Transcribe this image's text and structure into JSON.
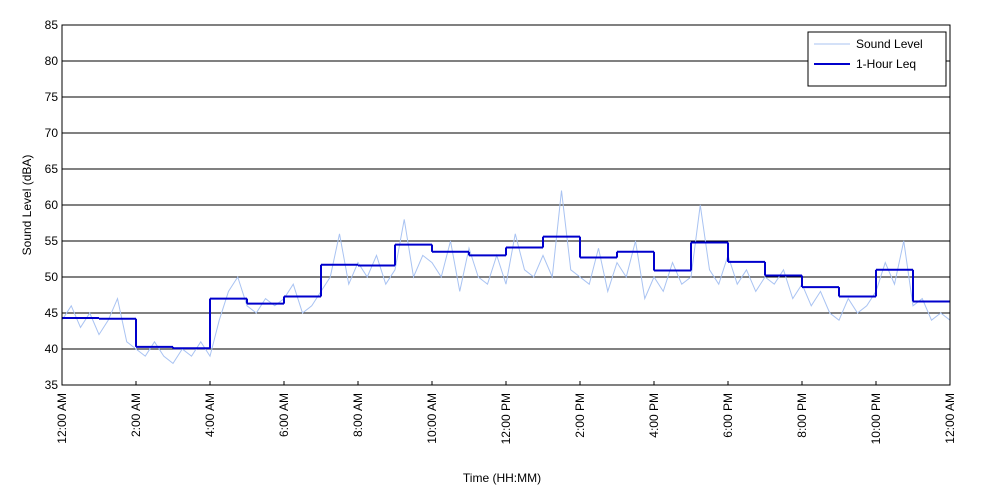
{
  "chart_data": {
    "type": "line",
    "x_label": "Time (HH:MM)",
    "y_label": "Sound Level (dBA)",
    "xlim": [
      0,
      24
    ],
    "ylim": [
      35,
      85
    ],
    "yticks": [
      35,
      40,
      45,
      50,
      55,
      60,
      65,
      70,
      75,
      80,
      85
    ],
    "xticks": [
      {
        "value": 0,
        "label": "12:00 AM"
      },
      {
        "value": 2,
        "label": "2:00 AM"
      },
      {
        "value": 4,
        "label": "4:00 AM"
      },
      {
        "value": 6,
        "label": "6:00 AM"
      },
      {
        "value": 8,
        "label": "8:00 AM"
      },
      {
        "value": 10,
        "label": "10:00 AM"
      },
      {
        "value": 12,
        "label": "12:00 PM"
      },
      {
        "value": 14,
        "label": "2:00 PM"
      },
      {
        "value": 16,
        "label": "4:00 PM"
      },
      {
        "value": 18,
        "label": "6:00 PM"
      },
      {
        "value": 20,
        "label": "8:00 PM"
      },
      {
        "value": 22,
        "label": "10:00 PM"
      },
      {
        "value": 24,
        "label": "12:00 AM"
      }
    ],
    "grid": "y",
    "legend": "upper right",
    "series": [
      {
        "name": "Sound Level",
        "color": "#a9c3f2",
        "x": [
          0,
          0.25,
          0.5,
          0.75,
          1,
          1.25,
          1.5,
          1.75,
          2,
          2.25,
          2.5,
          2.75,
          3,
          3.25,
          3.5,
          3.75,
          4,
          4.25,
          4.5,
          4.75,
          5,
          5.25,
          5.5,
          5.75,
          6,
          6.25,
          6.5,
          6.75,
          7,
          7.25,
          7.5,
          7.75,
          8,
          8.25,
          8.5,
          8.75,
          9,
          9.25,
          9.5,
          9.75,
          10,
          10.25,
          10.5,
          10.75,
          11,
          11.25,
          11.5,
          11.75,
          12,
          12.25,
          12.5,
          12.75,
          13,
          13.25,
          13.5,
          13.75,
          14,
          14.25,
          14.5,
          14.75,
          15,
          15.25,
          15.5,
          15.75,
          16,
          16.25,
          16.5,
          16.75,
          17,
          17.25,
          17.5,
          17.75,
          18,
          18.25,
          18.5,
          18.75,
          19,
          19.25,
          19.5,
          19.75,
          20,
          20.25,
          20.5,
          20.75,
          21,
          21.25,
          21.5,
          21.75,
          22,
          22.25,
          22.5,
          22.75,
          23,
          23.25,
          23.5,
          23.75,
          24
        ],
        "values": [
          44,
          46,
          43,
          45,
          42,
          44,
          47,
          41,
          40,
          39,
          41,
          39,
          38,
          40,
          39,
          41,
          39,
          44,
          48,
          50,
          46,
          45,
          47,
          46,
          47,
          49,
          45,
          46,
          48,
          50,
          56,
          49,
          52,
          50,
          53,
          49,
          51,
          58,
          50,
          53,
          52,
          50,
          55,
          48,
          54,
          50,
          49,
          53,
          49,
          56,
          51,
          50,
          53,
          50,
          62,
          51,
          50,
          49,
          54,
          48,
          52,
          50,
          55,
          47,
          50,
          48,
          52,
          49,
          50,
          60,
          51,
          49,
          53,
          49,
          51,
          48,
          50,
          49,
          51,
          47,
          49,
          46,
          48,
          45,
          44,
          47,
          45,
          46,
          48,
          52,
          49,
          55,
          46,
          47,
          44,
          45,
          44
        ]
      },
      {
        "name": "1-Hour Leq",
        "color": "#0000cc",
        "step": "post",
        "x": [
          0,
          1,
          2,
          3,
          4,
          5,
          6,
          7,
          8,
          9,
          10,
          11,
          12,
          13,
          14,
          15,
          16,
          17,
          18,
          19,
          20,
          21,
          22,
          23
        ],
        "values": [
          44.3,
          44.2,
          40.3,
          40.1,
          47.0,
          46.3,
          47.3,
          51.7,
          51.6,
          54.5,
          53.5,
          53.0,
          54.1,
          55.6,
          52.7,
          53.5,
          50.9,
          54.8,
          52.1,
          50.2,
          48.6,
          47.3,
          51.0,
          46.6
        ]
      }
    ]
  }
}
